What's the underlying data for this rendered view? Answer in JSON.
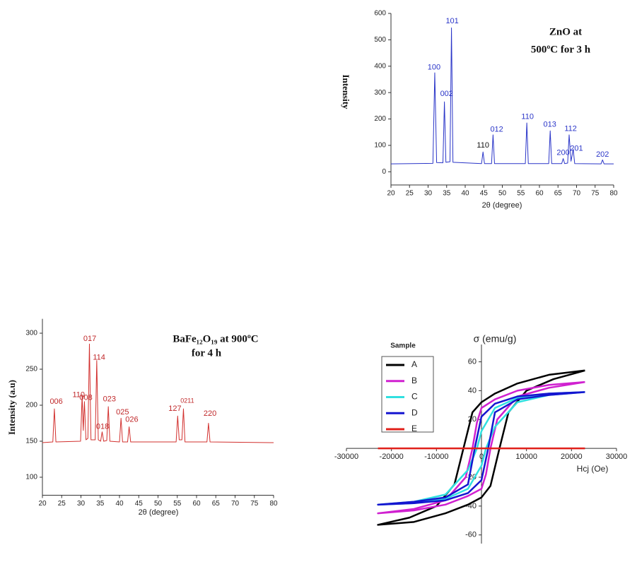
{
  "chart_data": [
    {
      "type": "line",
      "title": [
        "ZnO  at",
        "500ºC for 3 h"
      ],
      "x_label": "2θ (degree)",
      "y_label": "Intensity",
      "xlim": [
        20,
        80
      ],
      "xticks": [
        20,
        25,
        30,
        35,
        40,
        45,
        50,
        55,
        60,
        65,
        70,
        75,
        80
      ],
      "ylim": [
        -50,
        600
      ],
      "yticks": [
        0,
        100,
        200,
        300,
        400,
        500,
        600
      ],
      "axis_style": "box",
      "x": [
        20,
        31.3,
        31.8,
        32.3,
        34.0,
        34.4,
        34.8,
        35.9,
        36.3,
        36.7,
        44.4,
        44.8,
        45.2,
        47.1,
        47.5,
        47.9,
        56.2,
        56.6,
        57.0,
        62.5,
        62.9,
        63.3,
        66.0,
        66.4,
        66.8,
        67.6,
        68.0,
        68.5,
        69.1,
        69.5,
        76.6,
        77.0,
        77.4,
        80
      ],
      "series": [
        {
          "color": "#2a35c8",
          "values": [
            30,
            32,
            375,
            35,
            34,
            265,
            36,
            38,
            545,
            36,
            31,
            75,
            31,
            31,
            140,
            31,
            31,
            185,
            31,
            31,
            155,
            31,
            31,
            50,
            31,
            33,
            140,
            40,
            85,
            31,
            30,
            45,
            30,
            30
          ]
        }
      ],
      "annotations": [
        {
          "text": "100",
          "x": 31.6,
          "y": 395,
          "color": "#2a35c8"
        },
        {
          "text": "002",
          "x": 35.0,
          "y": 295,
          "color": "#2a35c8"
        },
        {
          "text": "101",
          "x": 36.5,
          "y": 570,
          "color": "#2a35c8"
        },
        {
          "text": "110",
          "x": 44.8,
          "y": 100,
          "color": "#111111"
        },
        {
          "text": "012",
          "x": 48.5,
          "y": 160,
          "color": "#2a35c8"
        },
        {
          "text": "110",
          "x": 56.8,
          "y": 208,
          "color": "#2a35c8"
        },
        {
          "text": "013",
          "x": 62.8,
          "y": 178,
          "color": "#2a35c8"
        },
        {
          "text": "200",
          "x": 66.4,
          "y": 72,
          "color": "#2a35c8"
        },
        {
          "text": "112",
          "x": 68.4,
          "y": 162,
          "color": "#2a35c8"
        },
        {
          "text": "201",
          "x": 70.0,
          "y": 88,
          "color": "#2a35c8"
        },
        {
          "text": "202",
          "x": 77.0,
          "y": 65,
          "color": "#2a35c8"
        }
      ]
    },
    {
      "type": "line",
      "title": [
        "BaFe₁₂O₁₉ at 900ºC",
        "for 4 h"
      ],
      "x_label": "2θ (degree)",
      "y_label": "Intensity  (a.u)",
      "xlim": [
        20,
        80
      ],
      "xticks": [
        20,
        25,
        30,
        35,
        40,
        45,
        50,
        55,
        60,
        65,
        70,
        75,
        80
      ],
      "ylim": [
        75,
        320
      ],
      "yticks": [
        100,
        150,
        200,
        250,
        300
      ],
      "axis_style": "box",
      "x": [
        20,
        22.7,
        23.1,
        23.5,
        29.9,
        30.3,
        30.6,
        30.9,
        31.3,
        31.8,
        32.2,
        32.6,
        33.7,
        34.1,
        34.5,
        35.1,
        35.5,
        35.9,
        36.7,
        37.1,
        37.5,
        40.0,
        40.4,
        40.8,
        42.1,
        42.5,
        42.9,
        54.7,
        55.1,
        55.5,
        56.2,
        56.6,
        57.0,
        62.7,
        63.1,
        63.5,
        80
      ],
      "series": [
        {
          "color": "#d2302e",
          "values": [
            148,
            149,
            195,
            149,
            150,
            213,
            165,
            205,
            152,
            154,
            285,
            152,
            152,
            262,
            152,
            150,
            163,
            150,
            151,
            198,
            150,
            149,
            182,
            149,
            149,
            170,
            149,
            149,
            185,
            152,
            152,
            195,
            149,
            149,
            175,
            149,
            148
          ]
        }
      ],
      "annotations": [
        {
          "text": "006",
          "x": 23.6,
          "y": 205,
          "color": "#c0282a"
        },
        {
          "text": "110",
          "x": 29.4,
          "y": 214,
          "color": "#c0282a"
        },
        {
          "text": "008",
          "x": 31.3,
          "y": 210,
          "color": "#c0282a"
        },
        {
          "text": "017",
          "x": 32.3,
          "y": 292,
          "color": "#c0282a"
        },
        {
          "text": "114",
          "x": 34.7,
          "y": 266,
          "color": "#c0282a"
        },
        {
          "text": "018",
          "x": 35.6,
          "y": 170,
          "color": "#c0282a"
        },
        {
          "text": "023",
          "x": 37.4,
          "y": 208,
          "color": "#c0282a"
        },
        {
          "text": "025",
          "x": 40.8,
          "y": 190,
          "color": "#c0282a"
        },
        {
          "text": "026",
          "x": 43.2,
          "y": 180,
          "color": "#c0282a"
        },
        {
          "text": "127",
          "x": 54.4,
          "y": 195,
          "color": "#c0282a"
        },
        {
          "text": "0211",
          "x": 57.6,
          "y": 206,
          "color": "#c0282a"
        },
        {
          "text": "220",
          "x": 63.5,
          "y": 188,
          "color": "#c0282a"
        }
      ]
    },
    {
      "type": "line",
      "x_label": "Hcj (Oe)",
      "y_label": "σ (emu/g)",
      "legend_title": "Sample",
      "legend": "upper left",
      "xlim": [
        -30000,
        30000
      ],
      "xticks": [
        -30000,
        -20000,
        -10000,
        0,
        10000,
        20000,
        30000
      ],
      "ylim": [
        -66,
        72
      ],
      "yticks": [
        -60,
        -40,
        -20,
        20,
        40,
        60
      ],
      "axis_style": "origin",
      "series": [
        {
          "name": "A",
          "color": "#000000",
          "x": [
            23000,
            15000,
            8000,
            3000,
            0,
            -2000,
            -4000,
            -6000,
            -10000,
            -16000,
            -23000,
            -15000,
            -8000,
            -3000,
            0,
            2000,
            4000,
            6000,
            10000,
            16000,
            23000
          ],
          "values": [
            54,
            51,
            45,
            38,
            32,
            25,
            0,
            -25,
            -40,
            -48,
            -53,
            -51,
            -45,
            -39,
            -34,
            -26,
            0,
            25,
            40,
            48,
            54
          ]
        },
        {
          "name": "B",
          "color": "#d020d0",
          "x": [
            23000,
            15000,
            8000,
            3000,
            0,
            -1000,
            -2000,
            -3500,
            -8000,
            -15000,
            -23000,
            -15000,
            -8000,
            -3000,
            0,
            1000,
            2000,
            3500,
            8000,
            15000,
            23000
          ],
          "values": [
            46,
            44,
            40,
            34,
            28,
            18,
            0,
            -20,
            -36,
            -42,
            -45,
            -43,
            -39,
            -33,
            -28,
            -18,
            0,
            20,
            36,
            42,
            46
          ]
        },
        {
          "name": "C",
          "color": "#30e0e0",
          "x": [
            23000,
            15000,
            8000,
            3000,
            0,
            -1000,
            -3000,
            -8000,
            -15000,
            -23000,
            -15000,
            -8000,
            -3000,
            0,
            1000,
            3000,
            8000,
            15000,
            23000
          ],
          "values": [
            39,
            38,
            35,
            28,
            12,
            0,
            -15,
            -32,
            -37,
            -39,
            -38,
            -35,
            -28,
            -12,
            0,
            15,
            32,
            37,
            39
          ]
        },
        {
          "name": "D",
          "color": "#1515d0",
          "x": [
            23000,
            15000,
            8000,
            3000,
            0,
            -1500,
            -3000,
            -8000,
            -15000,
            -23000,
            -15000,
            -8000,
            -3000,
            0,
            1500,
            3000,
            8000,
            15000,
            23000
          ],
          "values": [
            39,
            38,
            36,
            31,
            22,
            0,
            -25,
            -34,
            -37,
            -39,
            -38,
            -36,
            -31,
            -22,
            0,
            25,
            34,
            37,
            39
          ]
        },
        {
          "name": "E",
          "color": "#e0201a",
          "x": [
            -23000,
            23000
          ],
          "values": [
            0,
            0
          ]
        }
      ]
    }
  ]
}
